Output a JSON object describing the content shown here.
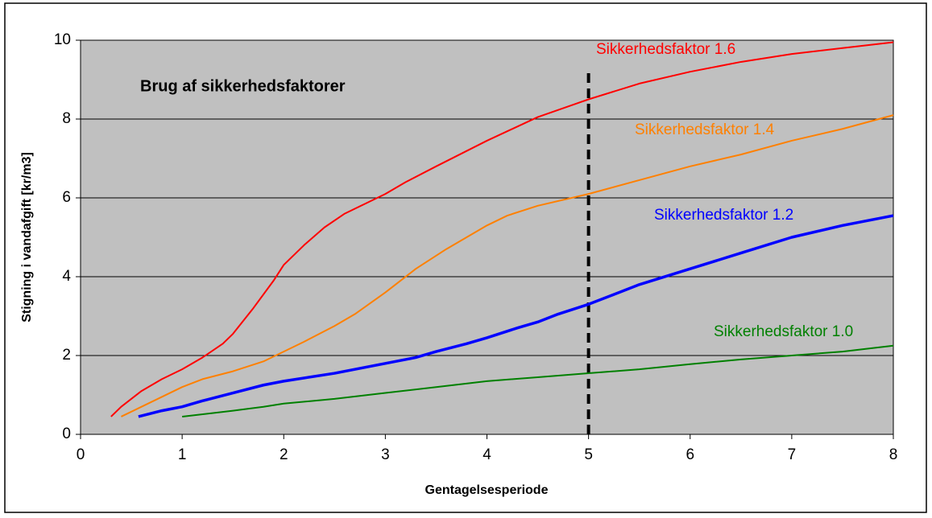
{
  "chart_data": {
    "type": "line",
    "title": "Brug af sikkerhedsfaktorer",
    "x_label": "Gentagelsesperiode",
    "y_label": "Stigning i vandafgift [kr/m3]",
    "xlim": [
      0,
      8
    ],
    "xticks": [
      0,
      1,
      2,
      3,
      4,
      5,
      6,
      7,
      8
    ],
    "ylim": [
      0,
      10
    ],
    "yticks": [
      0,
      2,
      4,
      6,
      8,
      10
    ],
    "grid": true,
    "reference_line": {
      "x": 5,
      "y": [
        0,
        9.3
      ],
      "color": "#000000"
    },
    "series": [
      {
        "name": "Sikkerhedsfaktor 1.6",
        "color": "#ff0000",
        "x": [
          0.3,
          0.4,
          0.6,
          0.8,
          1.0,
          1.2,
          1.4,
          1.5,
          1.7,
          1.9,
          2.0,
          2.2,
          2.4,
          2.6,
          2.8,
          3.0,
          3.2,
          3.5,
          4.0,
          4.5,
          5.0,
          5.5,
          6.0,
          6.5,
          7.0,
          7.5,
          8.0
        ],
        "values": [
          0.45,
          0.7,
          1.1,
          1.4,
          1.65,
          1.95,
          2.3,
          2.55,
          3.2,
          3.9,
          4.3,
          4.8,
          5.25,
          5.6,
          5.85,
          6.1,
          6.4,
          6.8,
          7.45,
          8.05,
          8.5,
          8.9,
          9.2,
          9.45,
          9.65,
          9.8,
          9.95
        ]
      },
      {
        "name": "Sikkerhedsfaktor 1.4",
        "color": "#ff8000",
        "x": [
          0.4,
          0.6,
          0.8,
          1.0,
          1.2,
          1.5,
          1.8,
          2.0,
          2.2,
          2.5,
          2.7,
          3.0,
          3.3,
          3.6,
          4.0,
          4.2,
          4.5,
          5.0,
          5.5,
          6.0,
          6.5,
          7.0,
          7.5,
          8.0
        ],
        "values": [
          0.45,
          0.7,
          0.95,
          1.2,
          1.4,
          1.6,
          1.85,
          2.1,
          2.35,
          2.75,
          3.05,
          3.6,
          4.2,
          4.7,
          5.3,
          5.55,
          5.8,
          6.1,
          6.45,
          6.8,
          7.1,
          7.45,
          7.75,
          8.1
        ]
      },
      {
        "name": "Sikkerhedsfaktor 1.2",
        "color": "#0000ff",
        "x": [
          0.57,
          0.8,
          1.0,
          1.2,
          1.5,
          1.8,
          2.0,
          2.5,
          3.0,
          3.3,
          3.5,
          3.8,
          4.0,
          4.3,
          4.5,
          4.7,
          5.0,
          5.3,
          5.5,
          6.0,
          6.5,
          7.0,
          7.5,
          8.0
        ],
        "values": [
          0.45,
          0.6,
          0.7,
          0.85,
          1.05,
          1.25,
          1.35,
          1.55,
          1.8,
          1.95,
          2.1,
          2.3,
          2.45,
          2.7,
          2.85,
          3.05,
          3.3,
          3.6,
          3.8,
          4.2,
          4.6,
          5.0,
          5.3,
          5.55
        ]
      },
      {
        "name": "Sikkerhedsfaktor 1.0",
        "color": "#008000",
        "x": [
          1.0,
          1.5,
          1.8,
          2.0,
          2.5,
          3.0,
          3.5,
          4.0,
          4.5,
          5.0,
          5.5,
          6.0,
          6.5,
          7.0,
          7.5,
          8.0
        ],
        "values": [
          0.45,
          0.6,
          0.7,
          0.78,
          0.9,
          1.05,
          1.2,
          1.35,
          1.45,
          1.55,
          1.65,
          1.78,
          1.9,
          2.0,
          2.1,
          2.25
        ]
      }
    ]
  }
}
